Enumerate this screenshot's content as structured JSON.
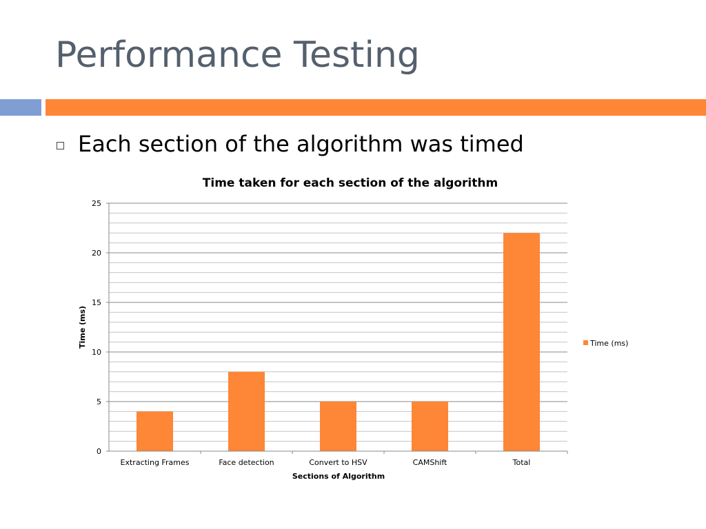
{
  "slide": {
    "title": "Performance Testing",
    "bullet": "Each section of the algorithm was timed"
  },
  "colors": {
    "accent_blue": "#7f9fd4",
    "accent_orange": "#fd8637",
    "bar": "#fd8637",
    "title_text": "#55606e"
  },
  "chart_data": {
    "type": "bar",
    "title": "Time taken for each section of the algorithm",
    "xlabel": "Sections of Algorithm",
    "ylabel": "Time (ms)",
    "categories": [
      "Extracting Frames",
      "Face detection",
      "Convert to HSV",
      "CAMShift",
      "Total"
    ],
    "series": [
      {
        "name": "Time (ms)",
        "values": [
          4,
          8,
          5,
          5,
          22
        ]
      }
    ],
    "ylim": [
      0,
      25
    ],
    "yticks": [
      0,
      5,
      10,
      15,
      20,
      25
    ],
    "minor_grid_step": 1,
    "grid": true,
    "legend": "right"
  }
}
